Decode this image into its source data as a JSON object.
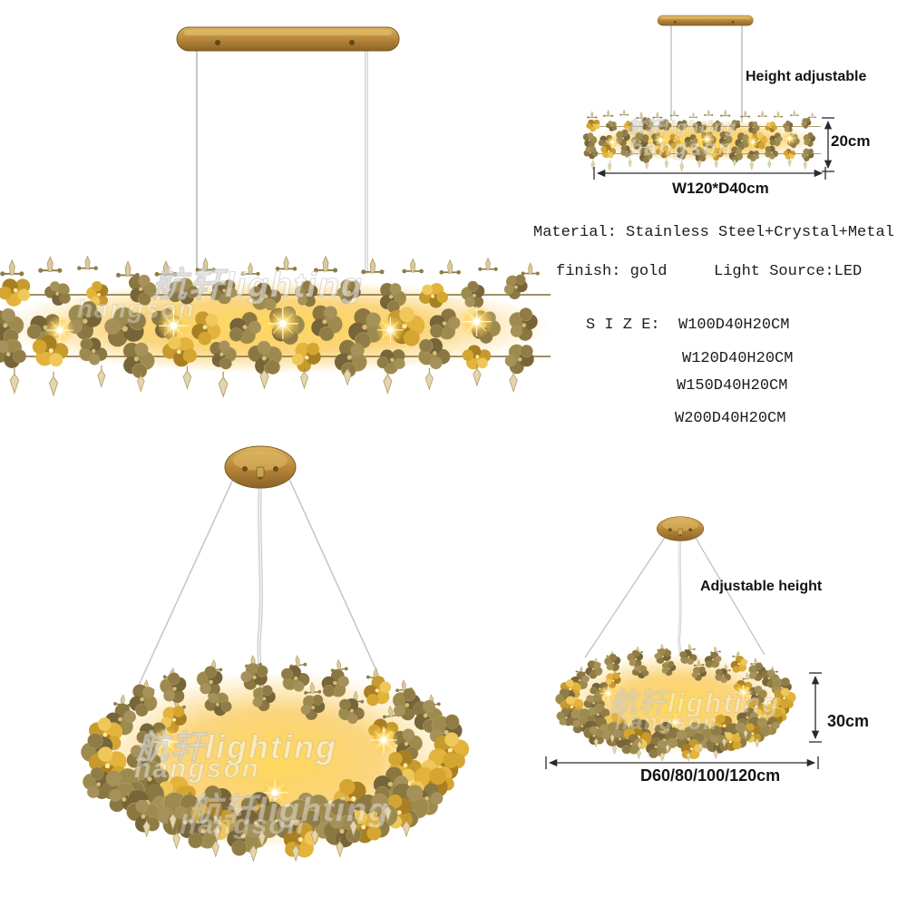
{
  "specs": {
    "material_line": "Material: Stainless Steel+Crystal+Metal",
    "finish_label": "finish: gold",
    "light_source_label": "Light Source:LED",
    "size_label": "S I Z E:",
    "sizes": [
      "W100D40H20CM",
      "W120D40H20CM",
      "W150D40H20CM",
      "W200D40H20CM"
    ]
  },
  "linear_diagram": {
    "height_note": "Height adjustable",
    "fixture_height": "20cm",
    "dimensions": "W120*D40cm"
  },
  "round_diagram": {
    "height_note": "Adjustable height",
    "fixture_height": "30cm",
    "dimensions": "D60/80/100/120cm"
  },
  "watermarks": {
    "brand_primary": "航轩lighting",
    "brand_secondary": "hangson"
  },
  "colors": {
    "gold_finish": "#b8873a",
    "glow": "#ffd84d",
    "petal_olive": "#8f7c46",
    "text": "#1c1c1c"
  }
}
